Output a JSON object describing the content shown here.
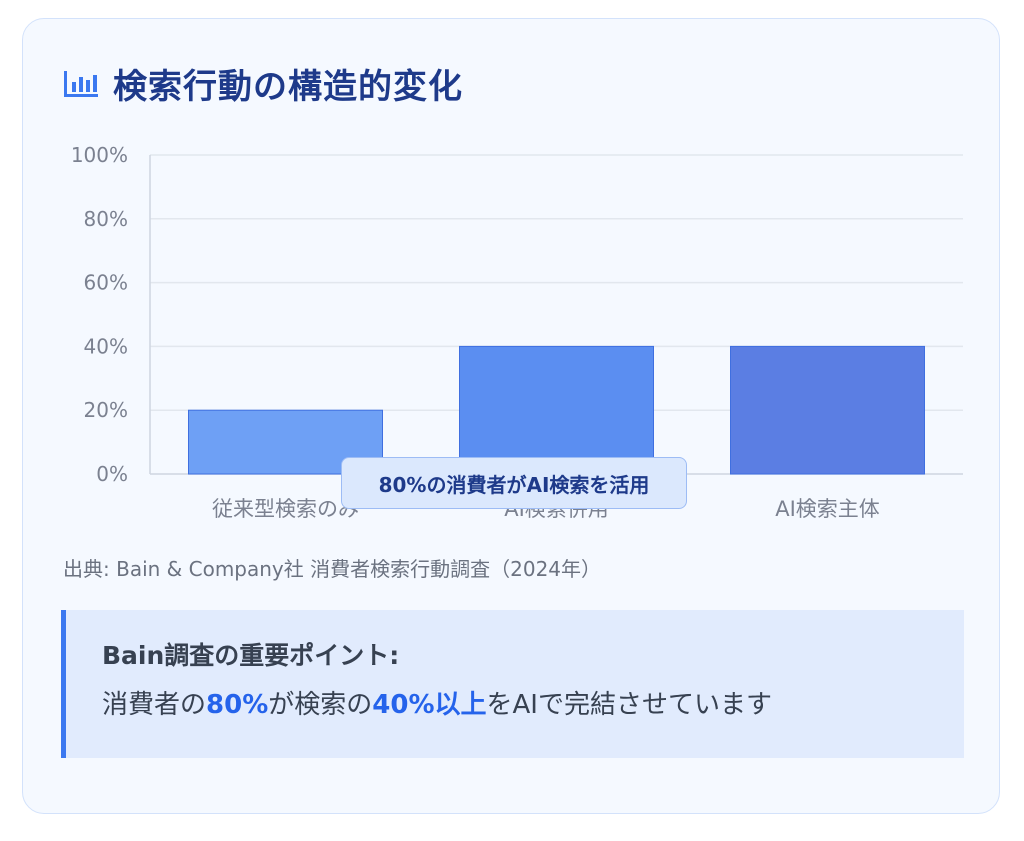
{
  "header": {
    "title": "検索行動の構造的変化",
    "icon": "bar-chart-icon"
  },
  "chart_data": {
    "type": "bar",
    "categories": [
      "従来型検索のみ",
      "AI検索併用",
      "AI検索主体"
    ],
    "values": [
      20,
      40,
      40
    ],
    "colors": [
      "#6ea0f5",
      "#5b8ef1",
      "#5b7ee3"
    ],
    "ylim": [
      0,
      100
    ],
    "yticks": [
      0,
      20,
      40,
      60,
      80,
      100
    ],
    "ytick_labels": [
      "0%",
      "20%",
      "40%",
      "60%",
      "80%",
      "100%"
    ],
    "grid": true,
    "annotation": "80%の消費者がAI検索を活用"
  },
  "source": "出典: Bain & Company社 消費者検索行動調査（2024年）",
  "key_point": {
    "heading": "Bain調査の重要ポイント:",
    "parts": [
      "消費者の",
      "80%",
      "が検索の",
      "40%以上",
      "をAIで完結させています"
    ]
  },
  "colors": {
    "accent": "#2563eb",
    "title": "#1e3a8a",
    "card_bg": "#f5f9ff",
    "keybox_bg": "#e1ebfd"
  }
}
